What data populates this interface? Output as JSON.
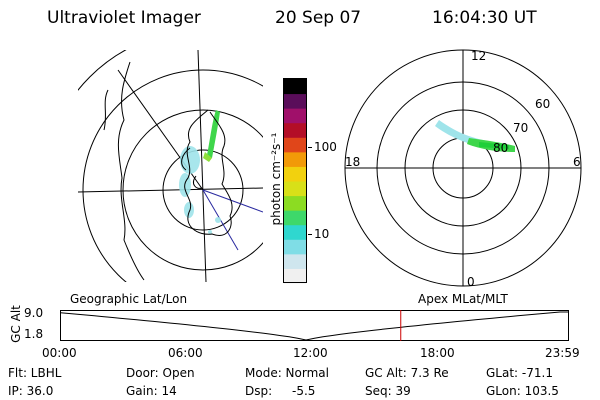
{
  "header": {
    "instrument": "Ultraviolet Imager",
    "date": "20 Sep 07",
    "time": "16:04:30 UT"
  },
  "colorbar": {
    "label": "photon cm⁻²s⁻¹",
    "ticks": [
      "100",
      "10"
    ],
    "scale": "log",
    "colors": [
      "#f0f0f0",
      "#cfe6ee",
      "#7fdde6",
      "#2fd7cf",
      "#3ed86a",
      "#8cdc22",
      "#d8e018",
      "#f2d10e",
      "#f29a08",
      "#e0461a",
      "#b30e27",
      "#a0106a",
      "#5a0d5a",
      "#000000"
    ]
  },
  "left_map": {
    "title": "Geographic Lat/Lon",
    "aurora_color": "#3fd64b",
    "diffuse_color": "#9fe4ea"
  },
  "right_map": {
    "title": "Apex MLat/MLT",
    "mlt_labels": {
      "top": "12",
      "left": "18",
      "right": "6",
      "bottom": "0"
    },
    "lat_labels": [
      "60",
      "70",
      "80"
    ]
  },
  "timeline": {
    "ylabel": "GC Alt",
    "y_ticks": [
      "9.0",
      "1.8"
    ],
    "x_ticks": [
      "00:00",
      "06:00",
      "12:00",
      "18:00",
      "23:59"
    ],
    "current_time_hours": 16.075,
    "marker_color": "#cc0000"
  },
  "info": {
    "flt": "Flt: LBHL",
    "ip": "IP: 36.0",
    "door": "Door: Open",
    "gain": "Gain: 14",
    "mode": "Mode: Normal",
    "dsp_label": "Dsp:",
    "dsp_value": "-5.5",
    "gc_alt": "GC Alt: 7.3 Re",
    "seq": "Seq: 39",
    "glat": "GLat: -71.1",
    "glon": "GLon: 103.5"
  }
}
